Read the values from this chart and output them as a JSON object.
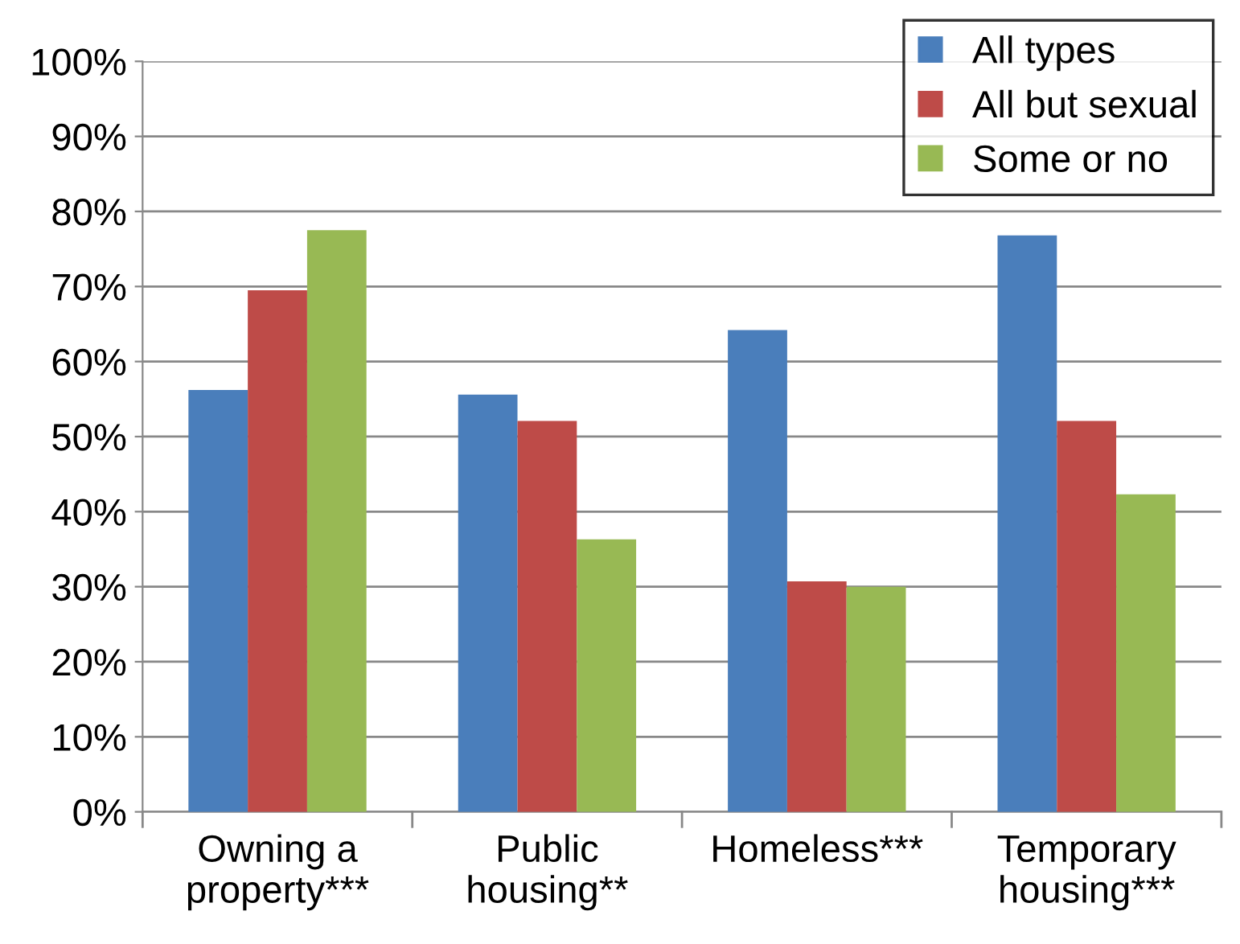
{
  "chart_data": {
    "type": "bar",
    "categories": [
      "Owning a\nproperty***",
      "Public\nhousing**",
      "Homeless***",
      "Temporary\nhousing***"
    ],
    "series": [
      {
        "name": "All types",
        "color": "#4a7ebb",
        "values": [
          56.2,
          55.6,
          64.2,
          76.8
        ]
      },
      {
        "name": "All but sexual",
        "color": "#be4b48",
        "values": [
          69.5,
          52.1,
          30.7,
          52.1
        ]
      },
      {
        "name": "Some or no",
        "color": "#98b954",
        "values": [
          77.5,
          36.3,
          30.0,
          42.3
        ]
      }
    ],
    "ylim": [
      0,
      100
    ],
    "yticks": [
      {
        "value": 0,
        "label": "0%"
      },
      {
        "value": 10,
        "label": "10%"
      },
      {
        "value": 20,
        "label": "20%"
      },
      {
        "value": 30,
        "label": "30%"
      },
      {
        "value": 40,
        "label": "40%"
      },
      {
        "value": 50,
        "label": "50%"
      },
      {
        "value": 60,
        "label": "60%"
      },
      {
        "value": 70,
        "label": "70%"
      },
      {
        "value": 80,
        "label": "80%"
      },
      {
        "value": 90,
        "label": "90%"
      },
      {
        "value": 100,
        "label": "100%"
      }
    ],
    "grid": "y",
    "legend": "top right"
  }
}
